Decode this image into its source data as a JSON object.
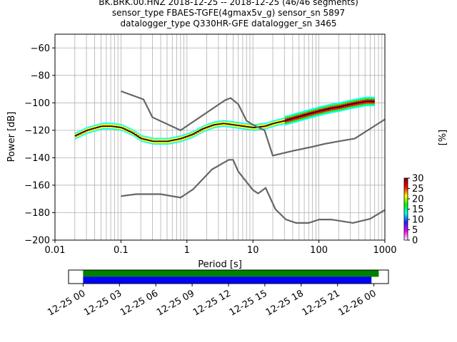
{
  "title": {
    "line1": "BK.BRK.00.HNZ   2018-12-25 -- 2018-12-25  (46/46 segments)",
    "line2": "sensor_type FBAES-TGFE(4gmax5v_g) sensor_sn 5897",
    "line3": "datalogger_type Q330HR-GFE datalogger_sn 3465"
  },
  "chart_data": [
    {
      "type": "scatter",
      "subtype": "probabilistic-power-spectral-density",
      "xlabel": "Period [s]",
      "ylabel": "Power [dB]",
      "x_scale": "log",
      "xlim": [
        0.01,
        1000
      ],
      "ylim": [
        -200,
        -50
      ],
      "grid": true,
      "x_ticks": [
        0.01,
        0.1,
        1,
        10,
        100,
        1000
      ],
      "x_tick_labels": [
        "0.01",
        "0.1",
        "1",
        "10",
        "100",
        "1000"
      ],
      "y_ticks": [
        -60,
        -80,
        -100,
        -120,
        -140,
        -160,
        -180,
        -200
      ],
      "y_tick_labels": [
        "−60",
        "−80",
        "−100",
        "−120",
        "−140",
        "−160",
        "−180",
        "−200"
      ],
      "colorbar": {
        "label": "[%]",
        "min": 0,
        "max": 30,
        "ticks": [
          0,
          5,
          10,
          15,
          20,
          25,
          30
        ],
        "tick_labels": [
          "0",
          "5",
          "10",
          "15",
          "20",
          "25",
          "30"
        ],
        "colormap": [
          "#ffffff",
          "#ff00ff",
          "#2020ff",
          "#00ffff",
          "#00ff00",
          "#ffff00",
          "#ff0000",
          "#800000"
        ]
      },
      "psd_median": {
        "x": [
          0.02,
          0.03,
          0.05,
          0.07,
          0.1,
          0.15,
          0.2,
          0.3,
          0.5,
          0.8,
          1.2,
          1.7,
          2.5,
          3.5,
          5,
          7,
          10,
          15,
          20,
          30,
          50,
          70,
          100,
          150,
          200,
          300,
          500,
          700
        ],
        "y": [
          -124,
          -120,
          -117,
          -117,
          -118,
          -122,
          -126,
          -128,
          -128,
          -126,
          -123,
          -119,
          -116,
          -115,
          -116,
          -117,
          -118,
          -117,
          -115,
          -113,
          -110,
          -108,
          -106,
          -104,
          -103,
          -101,
          -99,
          -99
        ]
      },
      "noise_models": [
        {
          "x": [
            0.1,
            0.22,
            0.3,
            0.8,
            3.8,
            4.6,
            6,
            8,
            10,
            15,
            20,
            40,
            80,
            120,
            200,
            350,
            1000
          ],
          "y": [
            -91.5,
            -97.5,
            -110.5,
            -120,
            -98,
            -96.5,
            -101,
            -113,
            -116,
            -120,
            -138.5,
            -135,
            -132,
            -130,
            -128,
            -126,
            -112
          ]
        },
        {
          "x": [
            0.1,
            0.17,
            0.4,
            0.8,
            1.24,
            2.4,
            4.3,
            5,
            6,
            10,
            12,
            15.6,
            21.9,
            31.6,
            45,
            70,
            101,
            154,
            328,
            600,
            1000
          ],
          "y": [
            -168,
            -166.5,
            -166.5,
            -169,
            -163,
            -148.5,
            -141.5,
            -141.5,
            -150,
            -163.5,
            -166,
            -162,
            -177.5,
            -185,
            -187.5,
            -187.5,
            -185,
            -185,
            -187.5,
            -184.5,
            -178
          ]
        }
      ]
    },
    {
      "type": "timeline",
      "tick_labels": [
        "12-25 00",
        "12-25 03",
        "12-25 06",
        "12-25 09",
        "12-25 12",
        "12-25 15",
        "12-25 18",
        "12-25 21",
        "12-26 00"
      ],
      "tick_hours": [
        0,
        3,
        6,
        9,
        12,
        15,
        18,
        21,
        24
      ],
      "xlim_hours": [
        -1.2,
        25.2
      ],
      "bars": [
        {
          "color": "#008000",
          "start_hour": 0,
          "end_hour": 24.4
        },
        {
          "color": "#0000ff",
          "start_hour": 0,
          "end_hour": 23.8
        }
      ]
    }
  ]
}
